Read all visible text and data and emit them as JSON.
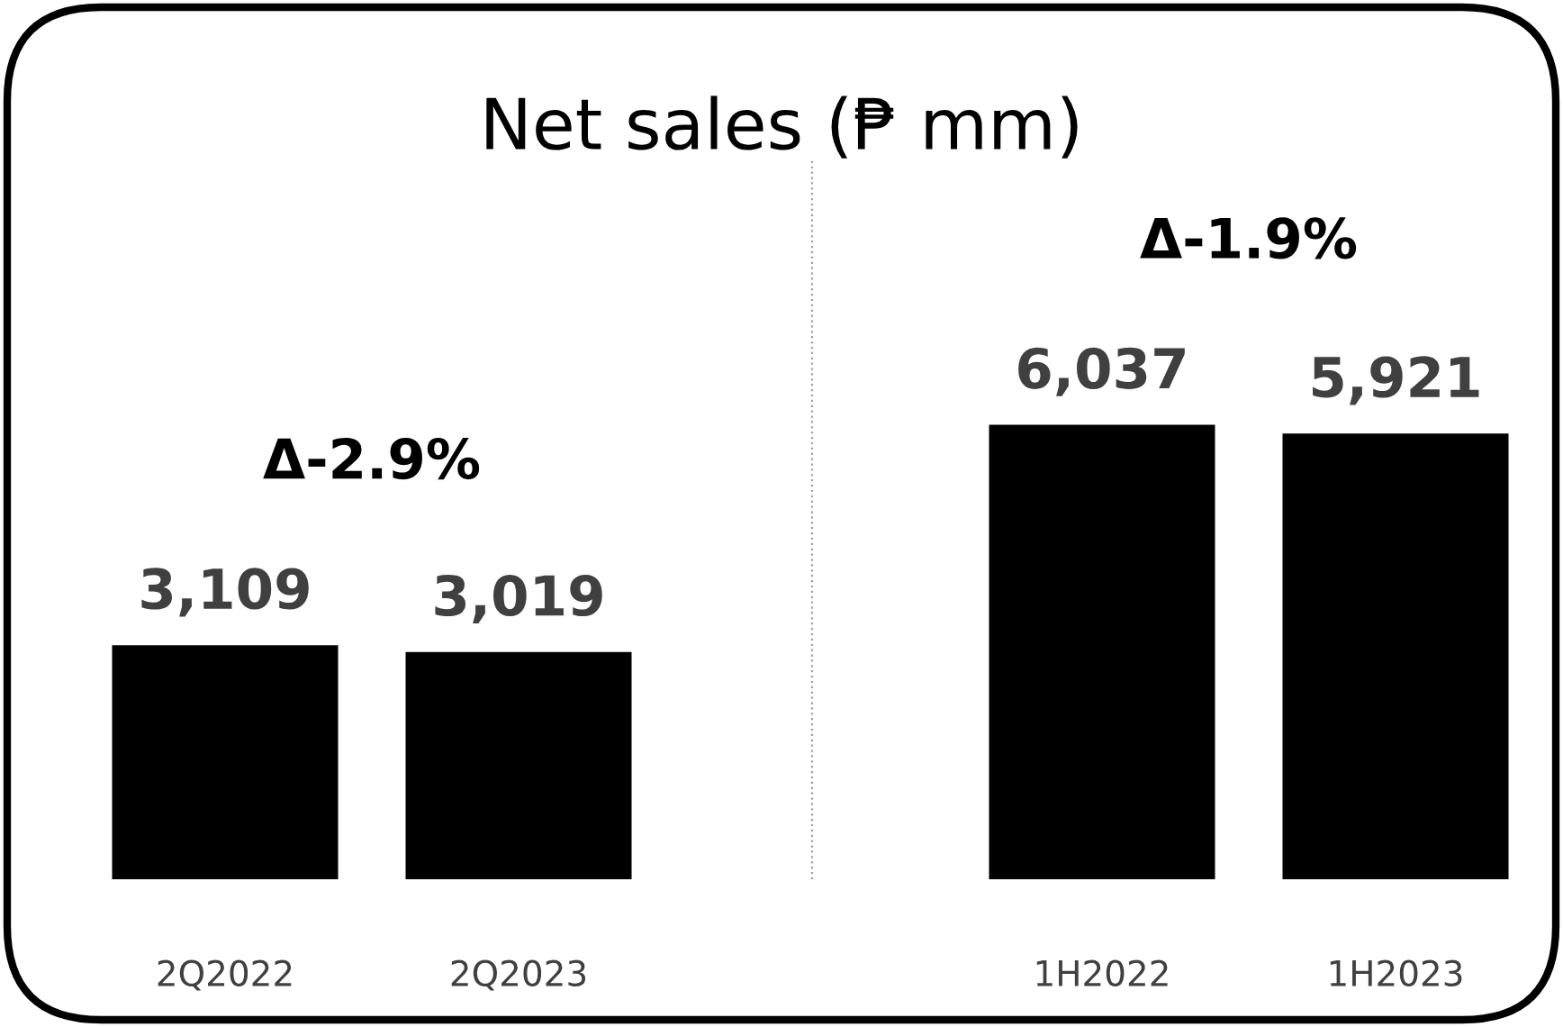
{
  "chart_data": [
    {
      "type": "bar",
      "title": "Net sales (₱ mm)",
      "categories": [
        "2Q2022",
        "2Q2023"
      ],
      "values": [
        3109,
        3019
      ],
      "value_labels": [
        "3,109",
        "3,019"
      ],
      "color": "#000000",
      "tick_labels": "x",
      "annotations": [
        "Δ-2.9%"
      ]
    },
    {
      "type": "bar",
      "categories": [
        "1H2022",
        "1H2023"
      ],
      "values": [
        6037,
        5921
      ],
      "value_labels": [
        "6,037",
        "5,921"
      ],
      "color": "#000000",
      "tick_labels": "x",
      "annotations": [
        "Δ-1.9%"
      ]
    }
  ]
}
